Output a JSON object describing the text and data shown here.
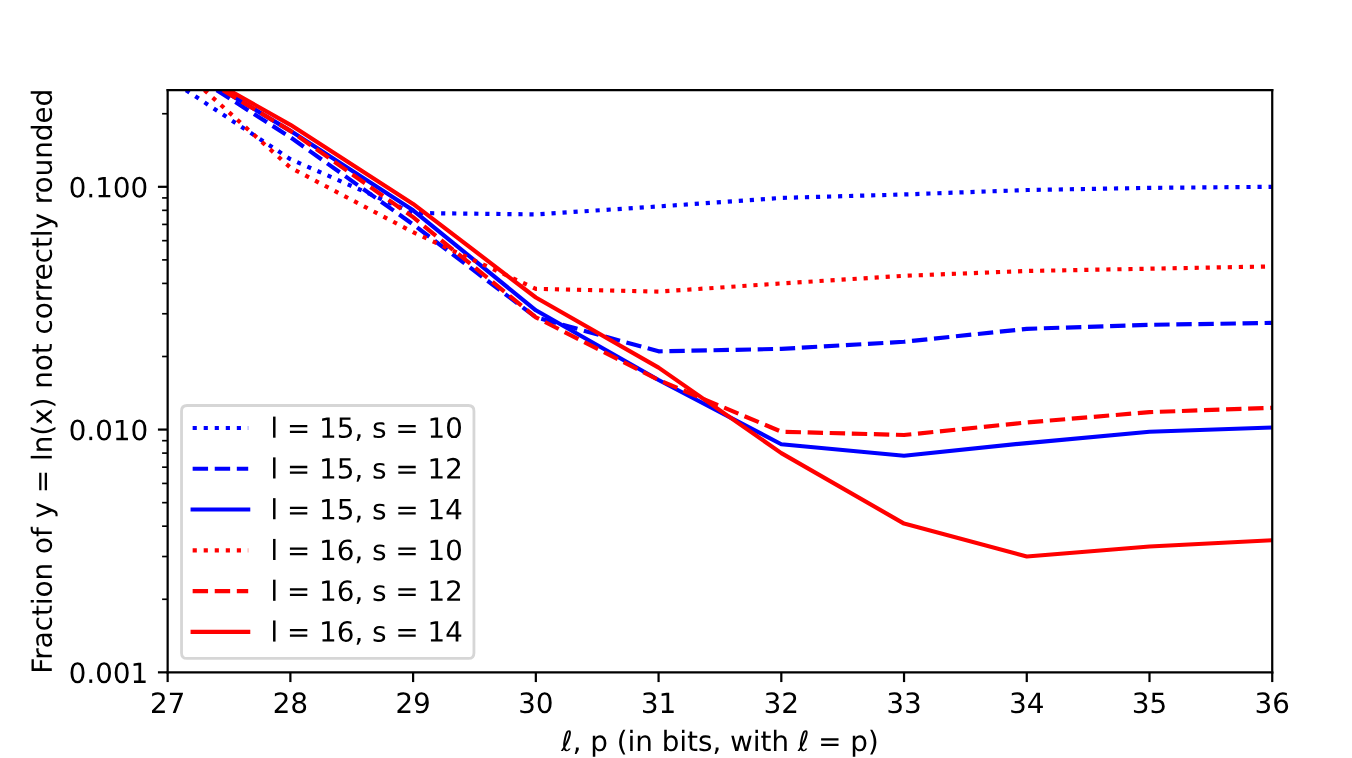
{
  "chart_data": {
    "type": "line",
    "xlabel": "ℓ, p (in bits, with ℓ = p)",
    "ylabel": "Fraction of y = ln(x) not correctly rounded",
    "log": "y",
    "xlim": [
      27,
      36
    ],
    "ylim": [
      0.001,
      0.25
    ],
    "xticks": [
      27,
      28,
      29,
      30,
      31,
      32,
      33,
      34,
      35,
      36
    ],
    "yticks": [
      {
        "value": 0.001,
        "label": "0.001"
      },
      {
        "value": 0.01,
        "label": "0.010"
      },
      {
        "value": 0.1,
        "label": "0.100"
      }
    ],
    "grid": false,
    "legend": "bottom left",
    "series": [
      {
        "name": "l = 15, s = 10",
        "color": "#0000ff",
        "line_style": "dotted",
        "x": [
          27.15,
          28,
          29,
          30,
          31,
          32,
          33,
          34,
          35,
          36
        ],
        "values": [
          0.25,
          0.13,
          0.078,
          0.077,
          0.083,
          0.09,
          0.093,
          0.097,
          0.099,
          0.1
        ]
      },
      {
        "name": "l = 15, s = 12",
        "color": "#0000ff",
        "line_style": "dashed",
        "x": [
          27.4,
          28,
          29,
          30,
          31,
          32,
          33,
          34,
          35,
          36
        ],
        "values": [
          0.25,
          0.16,
          0.07,
          0.029,
          0.021,
          0.0215,
          0.023,
          0.026,
          0.027,
          0.0275
        ]
      },
      {
        "name": "l = 15, s = 14",
        "color": "#0000ff",
        "line_style": "solid",
        "x": [
          27.45,
          28,
          29,
          30,
          31,
          32,
          33,
          34,
          35,
          36
        ],
        "values": [
          0.25,
          0.17,
          0.08,
          0.031,
          0.016,
          0.0087,
          0.0078,
          0.0088,
          0.0098,
          0.0102
        ]
      },
      {
        "name": "l = 16, s = 10",
        "color": "#ff0000",
        "line_style": "dotted",
        "x": [
          27.3,
          28,
          29,
          30,
          31,
          32,
          33,
          34,
          35,
          36
        ],
        "values": [
          0.25,
          0.12,
          0.065,
          0.038,
          0.037,
          0.04,
          0.043,
          0.045,
          0.046,
          0.047
        ]
      },
      {
        "name": "l = 16, s = 12",
        "color": "#ff0000",
        "line_style": "dashed",
        "x": [
          27.45,
          28,
          29,
          30,
          31,
          32,
          33,
          34,
          35,
          36
        ],
        "values": [
          0.25,
          0.17,
          0.075,
          0.029,
          0.016,
          0.0098,
          0.0095,
          0.0107,
          0.0118,
          0.0123
        ]
      },
      {
        "name": "l = 16, s = 14",
        "color": "#ff0000",
        "line_style": "solid",
        "x": [
          27.5,
          28,
          29,
          30,
          31,
          32,
          33,
          34,
          35,
          36
        ],
        "values": [
          0.25,
          0.18,
          0.085,
          0.035,
          0.018,
          0.008,
          0.0041,
          0.003,
          0.0033,
          0.0035
        ]
      }
    ]
  }
}
